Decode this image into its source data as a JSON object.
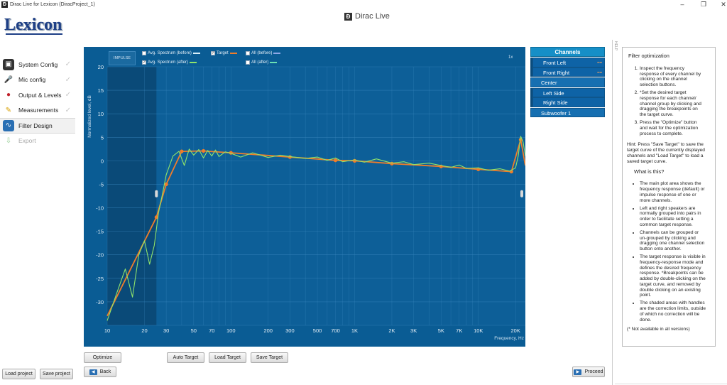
{
  "window": {
    "title": "Dirac Live for Lexicon (DiracProject_1)",
    "icon_glyph": "Ð",
    "controls": {
      "minimize": "–",
      "maximize": "❐",
      "close": "✕"
    }
  },
  "header": {
    "brand_logo": "Lexicon",
    "product_icon_glyph": "Ð",
    "product_name": "Dirac Live"
  },
  "sidebar": {
    "items": [
      {
        "label": "System Config",
        "icon": "speaker-icon",
        "glyph": "▣",
        "done": true
      },
      {
        "label": "Mic config",
        "icon": "microphone-icon",
        "glyph": "🎤",
        "done": true
      },
      {
        "label": "Output & Levels",
        "icon": "output-levels-icon",
        "glyph": "●",
        "done": true
      },
      {
        "label": "Measurements",
        "icon": "measurements-icon",
        "glyph": "✎",
        "done": true
      },
      {
        "label": "Filter Design",
        "icon": "filter-design-icon",
        "glyph": "∿",
        "active": true
      },
      {
        "label": "Export",
        "icon": "export-icon",
        "glyph": "⇩",
        "disabled": true
      }
    ],
    "check_glyph": "✓"
  },
  "plot": {
    "impulse_label": "IMPULSE",
    "zoom_label": "1x",
    "legend": [
      {
        "label": "Avg. Spectrum (before)",
        "checked": false,
        "color": "#d8eef8"
      },
      {
        "label": "Target",
        "checked": true,
        "color": "#f07d2a"
      },
      {
        "label": "All (before)",
        "checked": false,
        "color": "#8fa7e6"
      },
      {
        "label": "Avg. Spectrum (after)",
        "checked": true,
        "color": "#8fe36b"
      },
      {
        "label": "All (after)",
        "checked": false,
        "color": "#6be0b3"
      }
    ],
    "colors": {
      "background": "#0a5c94",
      "plot_area": "#0d5f98",
      "excluded_area": "#0a4a78",
      "grid": "#3a86bd",
      "after_curve": "#8fe36b",
      "target": "#f07d2a"
    }
  },
  "chart_data": {
    "type": "line",
    "ylabel": "Normalized level, dB",
    "xlabel": "Frequency, Hz",
    "x_scale": "log",
    "xlim": [
      10,
      24000
    ],
    "ylim": [
      -35,
      20
    ],
    "x_ticks": [
      {
        "value": 10,
        "label": "10"
      },
      {
        "value": 20,
        "label": "20"
      },
      {
        "value": 30,
        "label": "30"
      },
      {
        "value": 50,
        "label": "50"
      },
      {
        "value": 70,
        "label": "70"
      },
      {
        "value": 100,
        "label": "100"
      },
      {
        "value": 200,
        "label": "200"
      },
      {
        "value": 300,
        "label": "300"
      },
      {
        "value": 500,
        "label": "500"
      },
      {
        "value": 700,
        "label": "700"
      },
      {
        "value": 1000,
        "label": "1K"
      },
      {
        "value": 2000,
        "label": "2K"
      },
      {
        "value": 3000,
        "label": "3K"
      },
      {
        "value": 5000,
        "label": "5K"
      },
      {
        "value": 7000,
        "label": "7K"
      },
      {
        "value": 10000,
        "label": "10K"
      },
      {
        "value": 20000,
        "label": "20K"
      }
    ],
    "y_ticks": [
      {
        "value": 20,
        "label": "20"
      },
      {
        "value": 15,
        "label": "15"
      },
      {
        "value": 10,
        "label": "10"
      },
      {
        "value": 5,
        "label": "5"
      },
      {
        "value": 0,
        "label": "0"
      },
      {
        "value": -5,
        "label": "-5"
      },
      {
        "value": -10,
        "label": "-10"
      },
      {
        "value": -15,
        "label": "-15"
      },
      {
        "value": -20,
        "label": "-20"
      },
      {
        "value": -25,
        "label": "-25"
      },
      {
        "value": -30,
        "label": "-30"
      }
    ],
    "correction_limits_hz": [
      25,
      24000
    ],
    "series": [
      {
        "name": "Target",
        "x": [
          10,
          25,
          30,
          40,
          60,
          100,
          300,
          700,
          1000,
          2000,
          5000,
          10000,
          18500,
          22000,
          24000
        ],
        "y": [
          -33,
          -12,
          -5,
          2,
          2.1,
          1.7,
          0.8,
          0.1,
          0,
          -0.6,
          -1.2,
          -1.8,
          -2.3,
          4.5,
          -1
        ]
      },
      {
        "name": "Avg. Spectrum (after)",
        "x": [
          10,
          12,
          14,
          16,
          18,
          20,
          22,
          24,
          26,
          28,
          30,
          34,
          38,
          42,
          46,
          50,
          55,
          60,
          65,
          70,
          75,
          80,
          90,
          100,
          120,
          150,
          200,
          250,
          300,
          400,
          500,
          600,
          700,
          800,
          1000,
          1200,
          1500,
          2000,
          2500,
          3000,
          4000,
          5000,
          6000,
          7000,
          8000,
          10000,
          12000,
          15000,
          18000,
          20000,
          21000,
          22000,
          23000,
          24000
        ],
        "y": [
          -34,
          -28,
          -23,
          -29,
          -20,
          -17,
          -22,
          -18,
          -11,
          -7,
          -3,
          1,
          2,
          -1,
          2.5,
          1.2,
          2.4,
          0.6,
          2.2,
          1,
          2.3,
          0.9,
          1.9,
          1.6,
          0.8,
          1.7,
          0.7,
          1.2,
          0.9,
          0.5,
          0.8,
          0.1,
          0.6,
          -0.2,
          0.2,
          -0.3,
          0.4,
          -0.5,
          -0.2,
          -0.8,
          -0.5,
          -1,
          -1.4,
          -0.9,
          -1.6,
          -1.5,
          -2,
          -1.7,
          -2.2,
          -1.5,
          1,
          5.2,
          4,
          1
        ]
      }
    ]
  },
  "channels": {
    "header": "Channels",
    "link_glyph": "⊶",
    "items": [
      {
        "label": "Front Left",
        "grouped": true
      },
      {
        "label": "Front Right",
        "grouped": true
      },
      {
        "label": "Center",
        "grouped": false
      },
      {
        "label": "Left Side",
        "grouped": true
      },
      {
        "label": "Right Side",
        "grouped": true
      },
      {
        "label": "Subwoofer 1",
        "grouped": false
      }
    ]
  },
  "help": {
    "tab_label": "HELP",
    "title": "Filter optimization",
    "steps": [
      "Inspect the frequency response of every channel by clicking on the channel selection buttons.",
      "*Set the desired target response for each channel/ channel group by clicking and dragging the breakpoints on the target curve.",
      "Press the \"Optimize\" button and wait for the optimization process to complete."
    ],
    "hint": "Hint: Press \"Save Target\" to save the target curve of the currently displayed channels and \"Load Target\" to load a saved target curve.",
    "what_title": "What is this?",
    "bullets": [
      "The main plot area shows the frequency response (default) or impulse response of one or more channels.",
      "Left and right speakers are normally grouped into pairs in order to facilitate setting a common target response.",
      "Channels can be grouped or un-grouped by clicking and dragging one channel selection button onto another.",
      "The target response is visible in frequency-response mode and defines the desired frequency response. *Breakpoints can be added by double-clicking on the target curve, and removed by double clicking on an existing point.",
      "The shaded areas with handles are the correction limits, outside of which no correction will be done."
    ],
    "note": "(* Not available in all versions)"
  },
  "buttons": {
    "optimize": "Optimize",
    "auto_target": "Auto Target",
    "load_target": "Load Target",
    "save_target": "Save Target",
    "back": "Back",
    "back_glyph": "◀",
    "proceed": "Proceed",
    "proceed_glyph": "▶",
    "load_project": "Load project",
    "save_project": "Save project"
  }
}
